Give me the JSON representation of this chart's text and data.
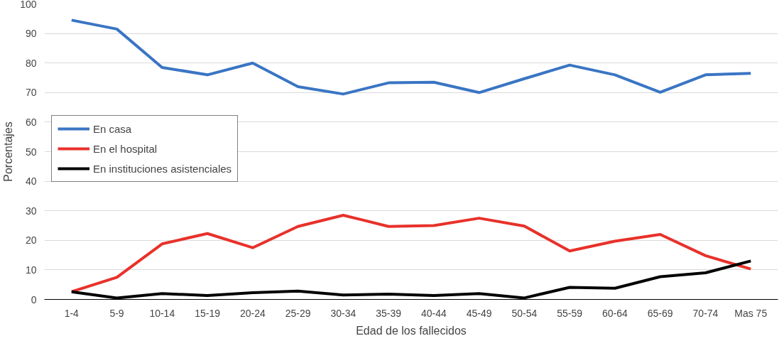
{
  "chart_data": {
    "type": "line",
    "xlabel": "Edad de los fallecidos",
    "ylabel": "Porcentajes",
    "categories": [
      "1-4",
      "5-9",
      "10-14",
      "15-19",
      "20-24",
      "25-29",
      "30-34",
      "35-39",
      "40-44",
      "45-49",
      "50-54",
      "55-59",
      "60-64",
      "65-69",
      "70-74",
      "Mas 75"
    ],
    "series": [
      {
        "name": "En casa",
        "color": "#3a75c4",
        "values": [
          94.5,
          91.5,
          78.5,
          76,
          80,
          72,
          69.5,
          73.3,
          73.5,
          70,
          74.7,
          79.3,
          76,
          70.1,
          76,
          76.5
        ]
      },
      {
        "name": "En el hospital",
        "color": "#e8312a",
        "values": [
          2.6,
          7.5,
          18.8,
          22.3,
          17.5,
          24.7,
          28.5,
          24.7,
          25,
          27.5,
          24.8,
          16.4,
          19.7,
          22,
          14.8,
          10.3
        ]
      },
      {
        "name": "En instituciones asistenciales",
        "color": "#000000",
        "values": [
          2.6,
          0.5,
          2,
          1.3,
          2.3,
          2.8,
          1.5,
          1.8,
          1.3,
          2,
          0.5,
          4.1,
          3.8,
          7.7,
          9,
          13
        ]
      }
    ],
    "ylim": [
      0,
      100
    ],
    "yticks": [
      0,
      10,
      20,
      30,
      40,
      50,
      60,
      70,
      80,
      90,
      100
    ],
    "grid": "y",
    "legend": "left",
    "marker": "none",
    "line_style": "solid"
  }
}
